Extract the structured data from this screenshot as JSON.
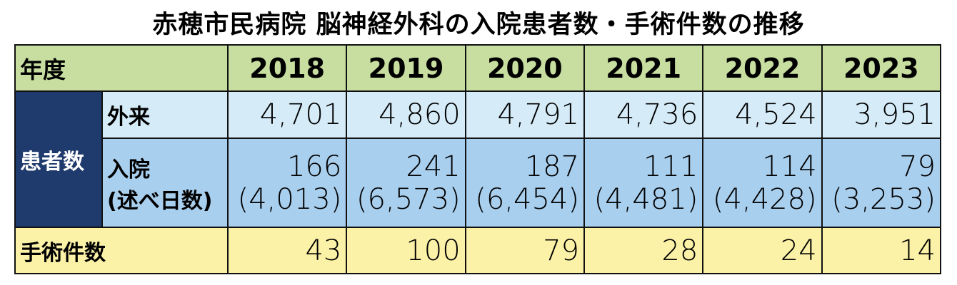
{
  "title": "赤穂市民病院 脳神経外科の入院患者数・手術件数の推移",
  "table": {
    "header": [
      "年度",
      "2018",
      "2019",
      "2020",
      "2021",
      "2022",
      "2023"
    ],
    "group_label": "患者数",
    "rows": [
      {
        "label": "外来",
        "values": [
          "4,701",
          "4,860",
          "4,791",
          "4,736",
          "4,524",
          "3,951"
        ]
      },
      {
        "label": "入院",
        "sublabel": "(述べ日数)",
        "values": [
          "166",
          "241",
          "187",
          "111",
          "114",
          "79"
        ],
        "days": [
          "(4,013)",
          "(6,573)",
          "(6,454)",
          "(4,481)",
          "(4,428)",
          "(3,253)"
        ]
      },
      {
        "label": "手術件数",
        "values": [
          "43",
          "100",
          "79",
          "28",
          "24",
          "14"
        ]
      }
    ]
  }
}
